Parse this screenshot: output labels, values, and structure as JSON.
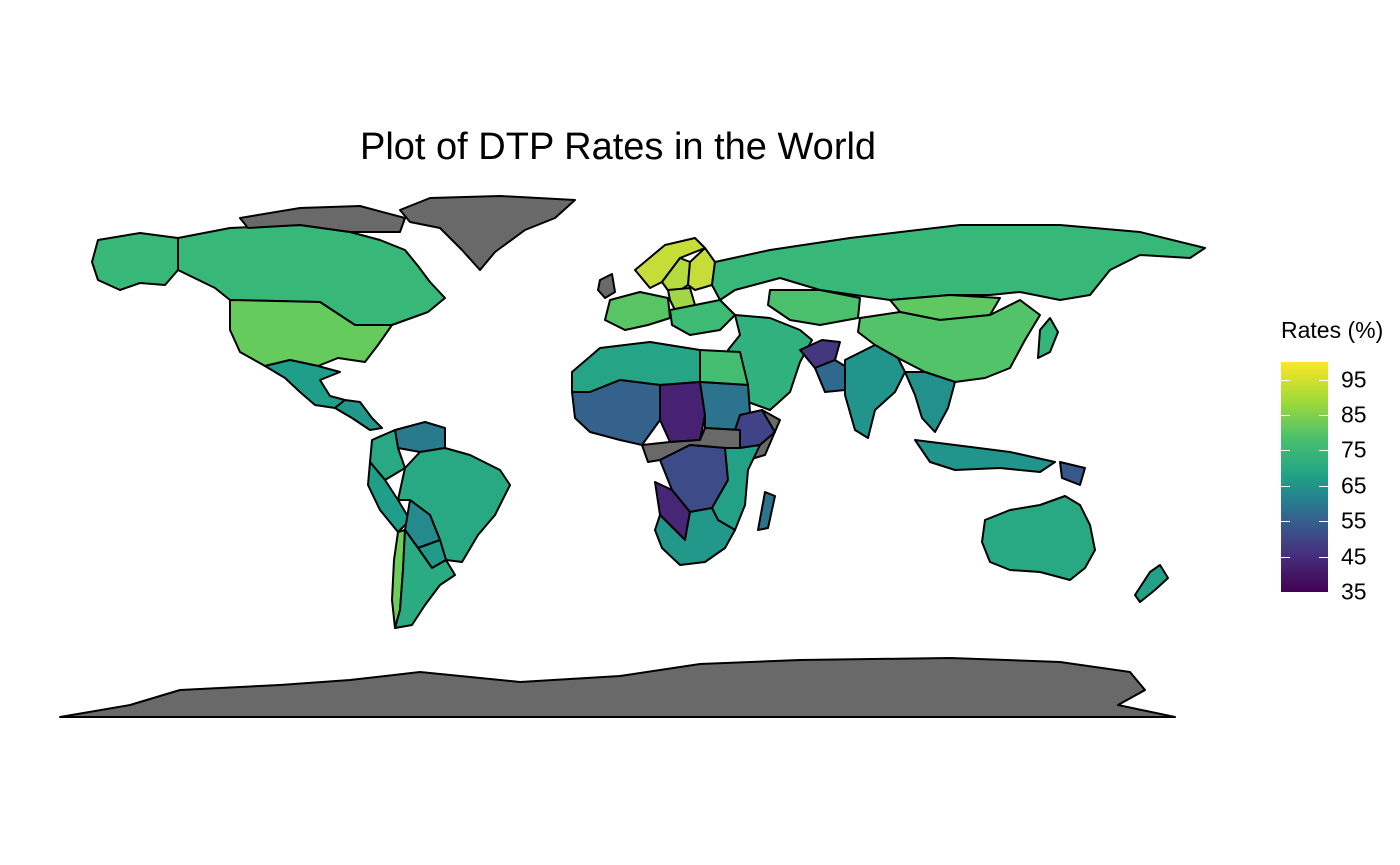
{
  "title": "Plot of DTP Rates in the World",
  "legend": {
    "title": "Rates (%)",
    "ticks": [
      95,
      85,
      75,
      65,
      55,
      45,
      35
    ],
    "range": [
      35,
      100
    ],
    "palette": "viridis"
  },
  "colors": {
    "no_data": "#696969",
    "border": "#000000",
    "background": "#ffffff"
  },
  "chart_data": {
    "type": "heatmap",
    "title": "Plot of DTP Rates in the World",
    "legend_title": "Rates (%)",
    "scale": {
      "min": 35,
      "max": 100,
      "ticks": [
        35,
        45,
        55,
        65,
        75,
        85,
        95
      ],
      "palette": "viridis"
    },
    "regions": [
      {
        "name": "Alaska",
        "value": 84
      },
      {
        "name": "Canada",
        "value": 84
      },
      {
        "name": "United States",
        "value": 91
      },
      {
        "name": "Greenland",
        "value": null
      },
      {
        "name": "Mexico",
        "value": 76
      },
      {
        "name": "Central America",
        "value": 74
      },
      {
        "name": "Venezuela",
        "value": 65
      },
      {
        "name": "Colombia",
        "value": 79
      },
      {
        "name": "Peru",
        "value": 76
      },
      {
        "name": "Brazil",
        "value": 79
      },
      {
        "name": "Bolivia",
        "value": 70
      },
      {
        "name": "Paraguay",
        "value": 75
      },
      {
        "name": "Chile",
        "value": 92
      },
      {
        "name": "Argentina",
        "value": 80
      },
      {
        "name": "Norway",
        "value": 97
      },
      {
        "name": "Sweden",
        "value": 96
      },
      {
        "name": "Finland",
        "value": 97
      },
      {
        "name": "Western Europe",
        "value": 89
      },
      {
        "name": "Poland",
        "value": 95
      },
      {
        "name": "Eastern Europe",
        "value": 85
      },
      {
        "name": "Russia",
        "value": 84
      },
      {
        "name": "Kazakhstan",
        "value": 87
      },
      {
        "name": "Mongolia",
        "value": 90
      },
      {
        "name": "China",
        "value": 88
      },
      {
        "name": "Middle East",
        "value": 82
      },
      {
        "name": "Afghanistan",
        "value": 47
      },
      {
        "name": "Pakistan",
        "value": 60
      },
      {
        "name": "India",
        "value": 73
      },
      {
        "name": "Southeast Asia",
        "value": 72
      },
      {
        "name": "Indonesia",
        "value": 73
      },
      {
        "name": "Papua New Guinea",
        "value": 55
      },
      {
        "name": "Japan",
        "value": 83
      },
      {
        "name": "North Africa",
        "value": 78
      },
      {
        "name": "Egypt",
        "value": 86
      },
      {
        "name": "West Africa",
        "value": 58
      },
      {
        "name": "Chad",
        "value": 42
      },
      {
        "name": "Sudan",
        "value": 63
      },
      {
        "name": "Ethiopia",
        "value": 50
      },
      {
        "name": "Somalia",
        "value": null
      },
      {
        "name": "DR Congo",
        "value": 52
      },
      {
        "name": "East Africa",
        "value": 77
      },
      {
        "name": "Angola",
        "value": 43
      },
      {
        "name": "Southern Africa",
        "value": 74
      },
      {
        "name": "Madagascar",
        "value": 63
      },
      {
        "name": "Australia",
        "value": 79
      },
      {
        "name": "New Zealand",
        "value": 77
      },
      {
        "name": "Antarctica",
        "value": null
      }
    ]
  }
}
